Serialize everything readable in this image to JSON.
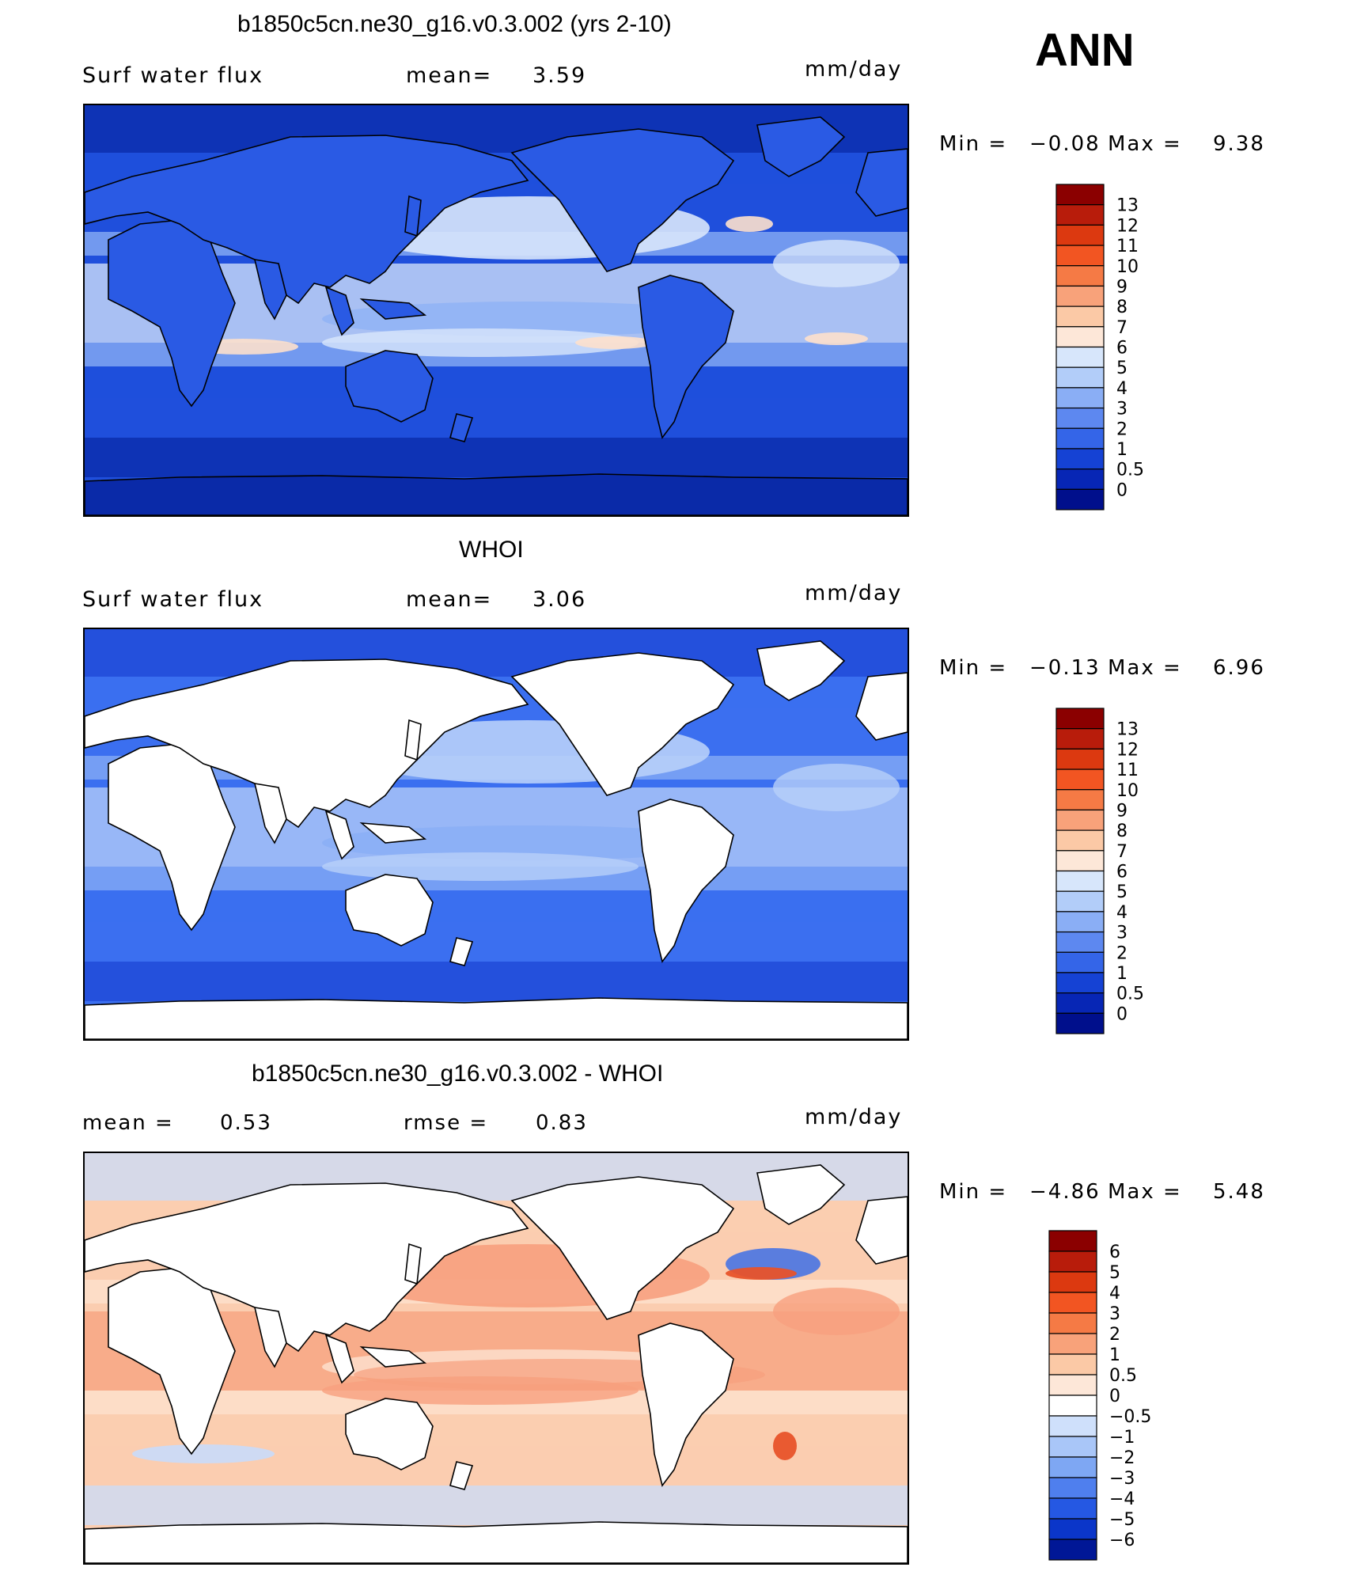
{
  "season": "ANN",
  "panels": [
    {
      "title": "b1850c5cn.ne30_g16.v0.3.002 (yrs 2-10)",
      "left_label": "Surf water flux",
      "center_label": "mean=",
      "center_value": "3.59",
      "units": "mm/day",
      "min_label": "Min =",
      "min_value": "−0.08",
      "max_label": "Max =",
      "max_value": "9.38",
      "colorbar": {
        "labels": [
          "13",
          "12",
          "11",
          "10",
          "9",
          "8",
          "7",
          "6",
          "5",
          "4",
          "3",
          "2",
          "1",
          "0.5",
          "0"
        ],
        "colors": [
          "#8b0000",
          "#b81c0b",
          "#dc3910",
          "#f25522",
          "#f57a45",
          "#f8a27a",
          "#fbc9a6",
          "#fde7d8",
          "#d7e6fb",
          "#b2cdf9",
          "#8aaef5",
          "#5d88f0",
          "#3465e8",
          "#1542d4",
          "#0726b5",
          "#000f8c"
        ]
      },
      "map_colors": {
        "base": "#1f4fdc",
        "high": "#d8e6fb",
        "mid": "#8fb2f5",
        "low": "#0a2aa8",
        "land": "#2a5ae4",
        "warm": "#fde0cc"
      }
    },
    {
      "title": "WHOI",
      "left_label": "Surf water flux",
      "center_label": "mean=",
      "center_value": "3.06",
      "units": "mm/day",
      "min_label": "Min =",
      "min_value": "−0.13",
      "max_label": "Max =",
      "max_value": "6.96",
      "colorbar": {
        "labels": [
          "13",
          "12",
          "11",
          "10",
          "9",
          "8",
          "7",
          "6",
          "5",
          "4",
          "3",
          "2",
          "1",
          "0.5",
          "0"
        ],
        "colors": [
          "#8b0000",
          "#b81c0b",
          "#dc3910",
          "#f25522",
          "#f57a45",
          "#f8a27a",
          "#fbc9a6",
          "#fde7d8",
          "#d7e6fb",
          "#b2cdf9",
          "#8aaef5",
          "#5d88f0",
          "#3465e8",
          "#1542d4",
          "#0726b5",
          "#000f8c"
        ]
      },
      "map_colors": {
        "base": "#3b6ff0",
        "high": "#b8cff9",
        "mid": "#8aaef5",
        "low": "#1d45d6",
        "land": "#ffffff",
        "warm": "#d7e6fb"
      }
    },
    {
      "title": "b1850c5cn.ne30_g16.v0.3.002 - WHOI",
      "left_label": "mean =",
      "left_value": "0.53",
      "center_label": "rmse =",
      "center_value": "0.83",
      "units": "mm/day",
      "min_label": "Min =",
      "min_value": "−4.86",
      "max_label": "Max =",
      "max_value": "5.48",
      "colorbar": {
        "labels": [
          "6",
          "5",
          "4",
          "3",
          "2",
          "1",
          "0.5",
          "0",
          "−0.5",
          "−1",
          "−2",
          "−3",
          "−4",
          "−5",
          "−6"
        ],
        "colors": [
          "#8b0000",
          "#b81c0b",
          "#dc3910",
          "#f25522",
          "#f57a45",
          "#f8a27a",
          "#fbc9a6",
          "#fde7d8",
          "#ffffff",
          "#cfe0fb",
          "#a9c6f8",
          "#7ea7f3",
          "#4f7fee",
          "#2558e3",
          "#0b36c9",
          "#001796"
        ]
      },
      "map_colors": {
        "base": "#fbcdb0",
        "high": "#f7a07e",
        "mid": "#fde2cf",
        "low": "#c9dcfb",
        "land": "#ffffff",
        "warm": "#e8532a"
      }
    }
  ]
}
